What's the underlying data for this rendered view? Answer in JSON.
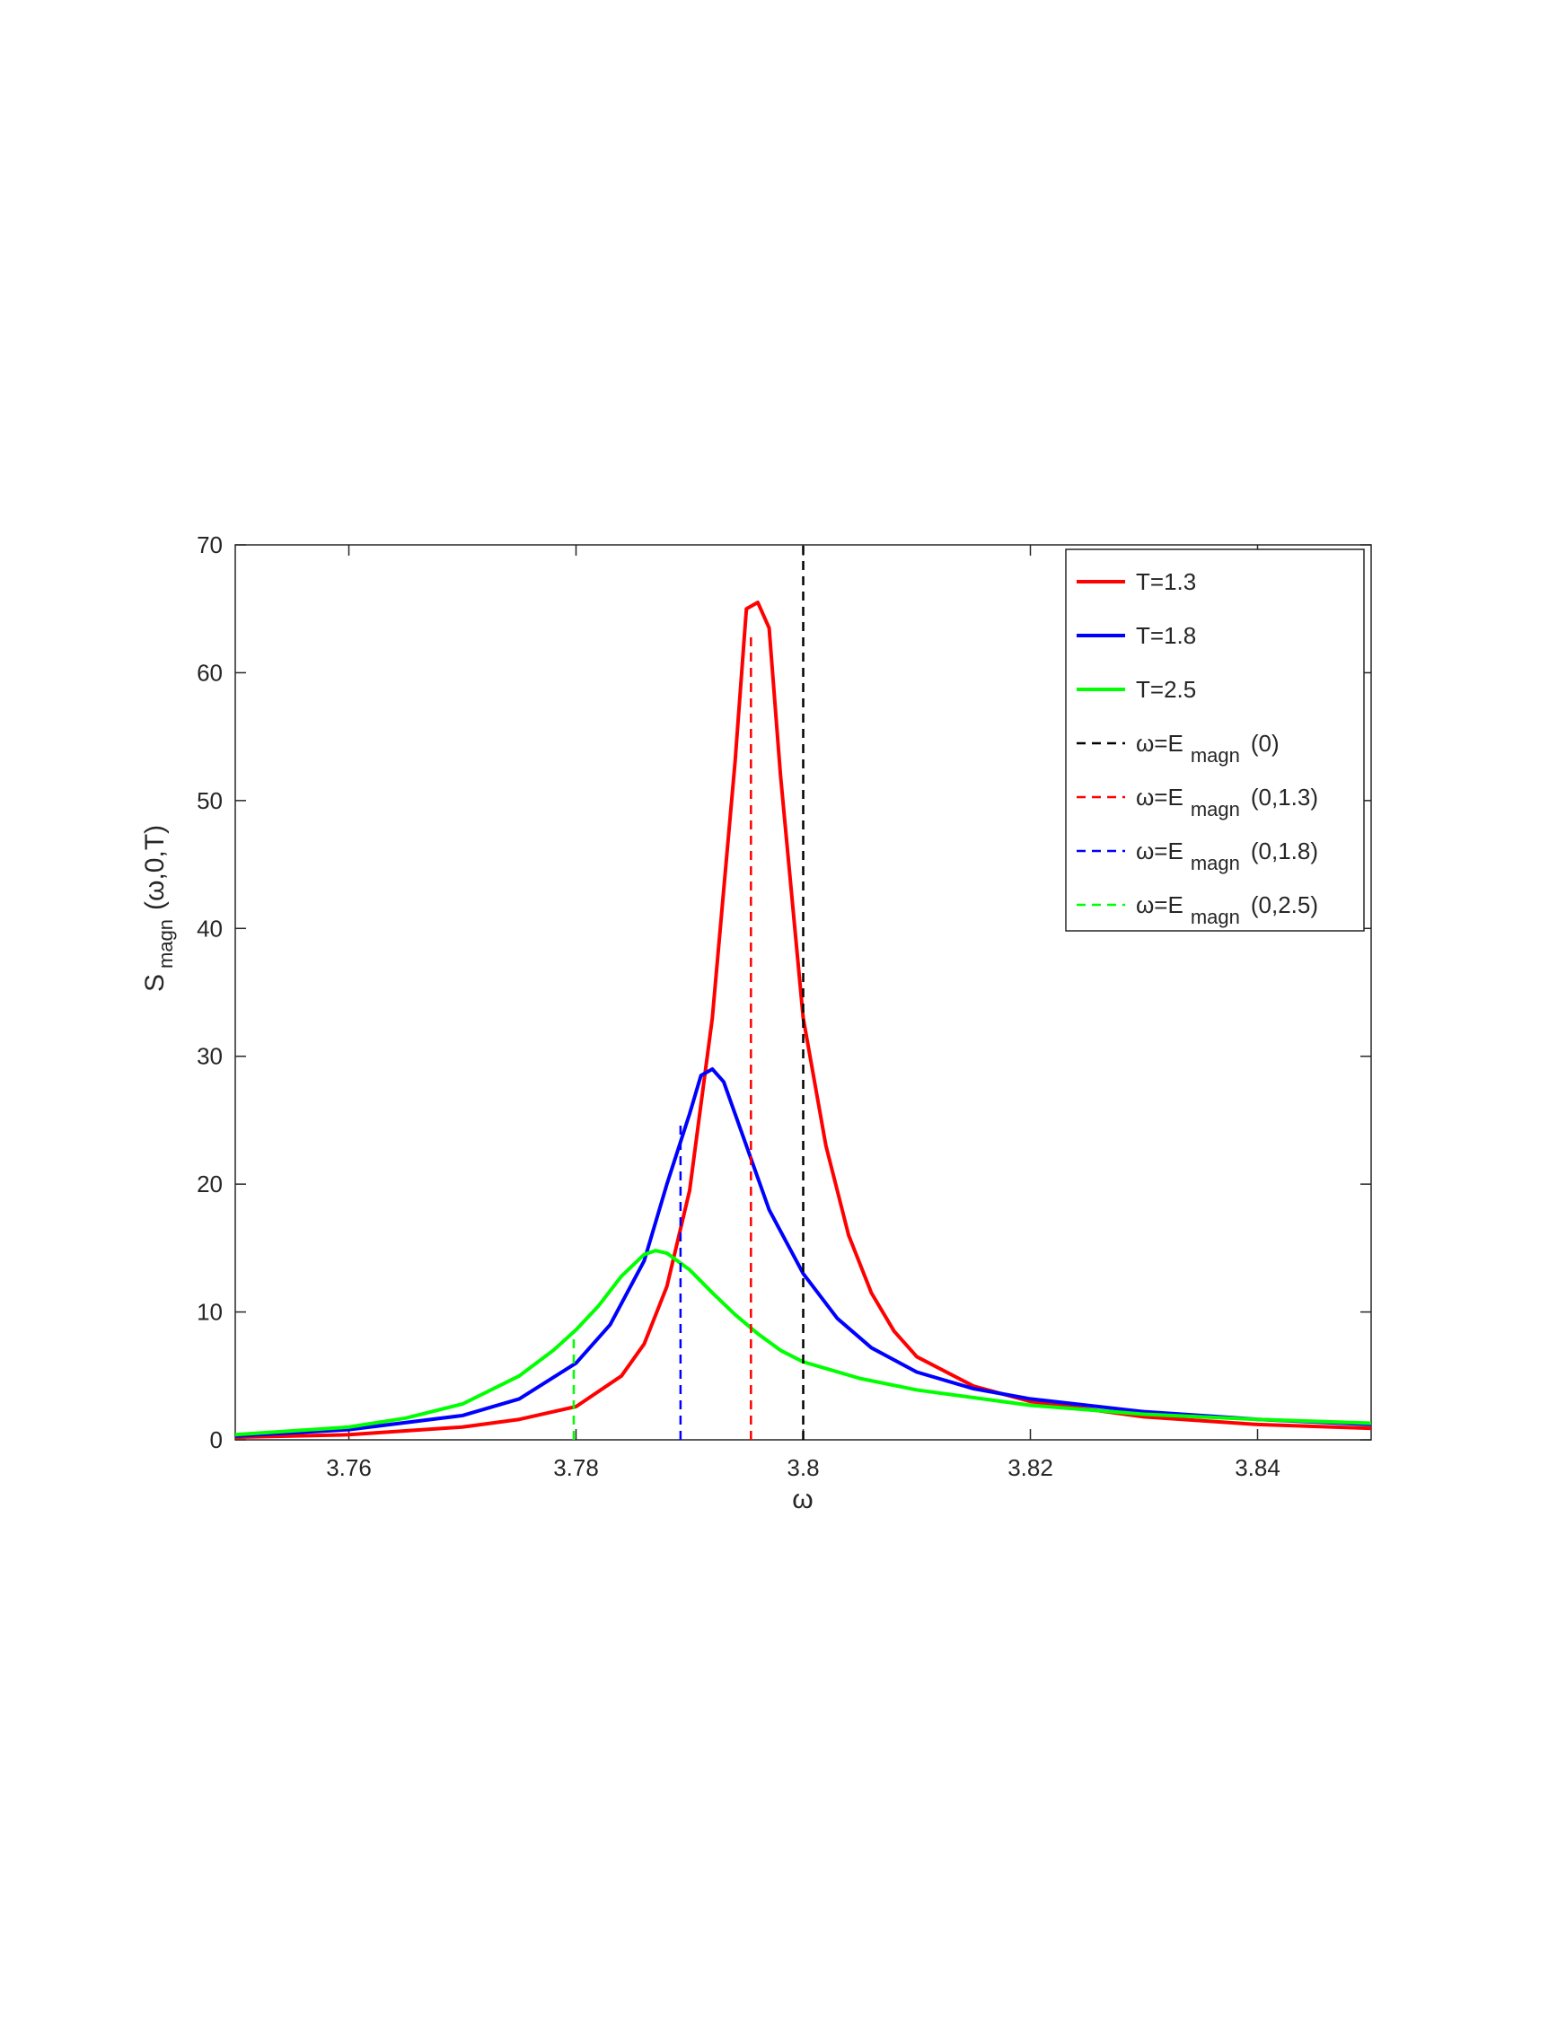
{
  "chart_data": {
    "type": "line",
    "xlabel": "ω",
    "ylabel": {
      "main": "S",
      "sub": "magn",
      "args": "(ω,0,T)"
    },
    "xlim": [
      3.75,
      3.85
    ],
    "ylim": [
      0,
      70
    ],
    "xticks": [
      3.76,
      3.78,
      3.8,
      3.82,
      3.84
    ],
    "xtick_labels": [
      "3.76",
      "3.78",
      "3.8",
      "3.82",
      "3.84"
    ],
    "yticks": [
      0,
      10,
      20,
      30,
      40,
      50,
      60,
      70
    ],
    "ytick_labels": [
      "0",
      "10",
      "20",
      "30",
      "40",
      "50",
      "60",
      "70"
    ],
    "grid": false,
    "legend_position": "top-right",
    "series": [
      {
        "name": "T=1.3",
        "color": "#ff0000",
        "style": "solid",
        "x": [
          3.75,
          3.76,
          3.77,
          3.775,
          3.78,
          3.784,
          3.786,
          3.788,
          3.79,
          3.792,
          3.794,
          3.795,
          3.796,
          3.797,
          3.798,
          3.8,
          3.802,
          3.804,
          3.806,
          3.808,
          3.81,
          3.815,
          3.82,
          3.83,
          3.84,
          3.85
        ],
        "y": [
          0.2,
          0.4,
          1.0,
          1.6,
          2.6,
          5.0,
          7.5,
          12.0,
          19.5,
          33.0,
          53.0,
          65.0,
          65.5,
          63.5,
          52.0,
          33.0,
          23.0,
          16.0,
          11.5,
          8.5,
          6.5,
          4.2,
          3.0,
          1.8,
          1.2,
          0.9
        ]
      },
      {
        "name": "T=1.8",
        "color": "#0000ff",
        "style": "solid",
        "x": [
          3.75,
          3.76,
          3.77,
          3.775,
          3.78,
          3.783,
          3.786,
          3.788,
          3.79,
          3.791,
          3.792,
          3.793,
          3.795,
          3.797,
          3.8,
          3.803,
          3.806,
          3.81,
          3.815,
          3.82,
          3.83,
          3.84,
          3.85
        ],
        "y": [
          0.3,
          0.8,
          1.9,
          3.2,
          6.0,
          9.0,
          14.0,
          20.0,
          25.5,
          28.5,
          29.0,
          28.0,
          23.0,
          18.0,
          13.0,
          9.5,
          7.2,
          5.3,
          4.0,
          3.2,
          2.2,
          1.6,
          1.2
        ]
      },
      {
        "name": "T=2.5",
        "color": "#00ff00",
        "style": "solid",
        "x": [
          3.75,
          3.76,
          3.765,
          3.77,
          3.775,
          3.778,
          3.78,
          3.782,
          3.784,
          3.786,
          3.787,
          3.788,
          3.79,
          3.792,
          3.794,
          3.796,
          3.798,
          3.8,
          3.805,
          3.81,
          3.82,
          3.83,
          3.84,
          3.85
        ],
        "y": [
          0.4,
          1.0,
          1.7,
          2.8,
          5.0,
          7.0,
          8.6,
          10.5,
          12.8,
          14.5,
          14.8,
          14.6,
          13.3,
          11.5,
          9.8,
          8.3,
          7.0,
          6.1,
          4.8,
          3.9,
          2.7,
          2.0,
          1.6,
          1.3
        ]
      },
      {
        "name": "ω=E",
        "sub": "magn",
        "args": "(0)",
        "color": "#000000",
        "style": "dashed",
        "x": [
          3.8,
          3.8
        ],
        "y": [
          0,
          70
        ]
      },
      {
        "name": "ω=E",
        "sub": "magn",
        "args": "(0,1.3)",
        "color": "#ff0000",
        "style": "dashed",
        "x": [
          3.7954,
          3.7954
        ],
        "y": [
          0,
          63
        ]
      },
      {
        "name": "ω=E",
        "sub": "magn",
        "args": "(0,1.8)",
        "color": "#0000ff",
        "style": "dashed",
        "x": [
          3.7892,
          3.7892
        ],
        "y": [
          0,
          25
        ]
      },
      {
        "name": "ω=E",
        "sub": "magn",
        "args": "(0,2.5)",
        "color": "#00ff00",
        "style": "dashed",
        "x": [
          3.7798,
          3.7798
        ],
        "y": [
          0,
          8.5
        ]
      }
    ]
  }
}
